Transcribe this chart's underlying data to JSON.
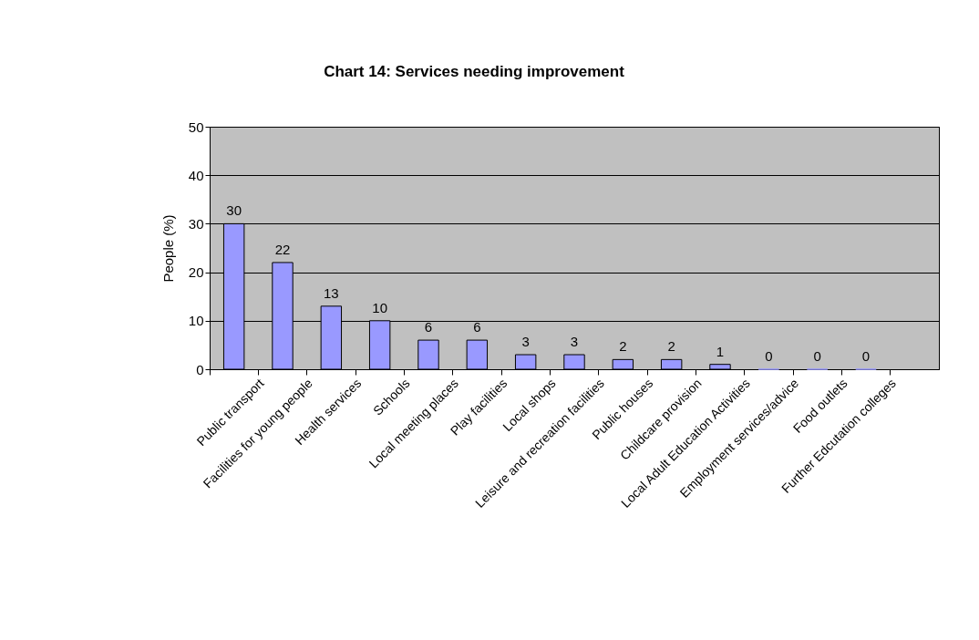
{
  "chart_data": {
    "type": "bar",
    "title": "Chart 14: Services needing improvement",
    "ylabel": "People (%)",
    "categories": [
      "Public transport",
      "Facilities for young people",
      "Health services",
      "Schools",
      "Local meeting places",
      "Play facilities",
      "Local shops",
      "Leisure and recreation facilities",
      "Public houses",
      "Childcare provision",
      "Local Adult Education Activities",
      "Employment services/advice",
      "Food outlets",
      "Further Edcutation colleges",
      null
    ],
    "values": [
      30,
      22,
      13,
      10,
      6,
      6,
      3,
      3,
      2,
      2,
      1,
      0,
      0,
      0,
      null
    ],
    "color": "#9999ff",
    "ylim": [
      0,
      50
    ],
    "yticks": [
      0,
      10,
      20,
      30,
      40,
      50
    ],
    "grid": "y",
    "data_labels": true
  }
}
